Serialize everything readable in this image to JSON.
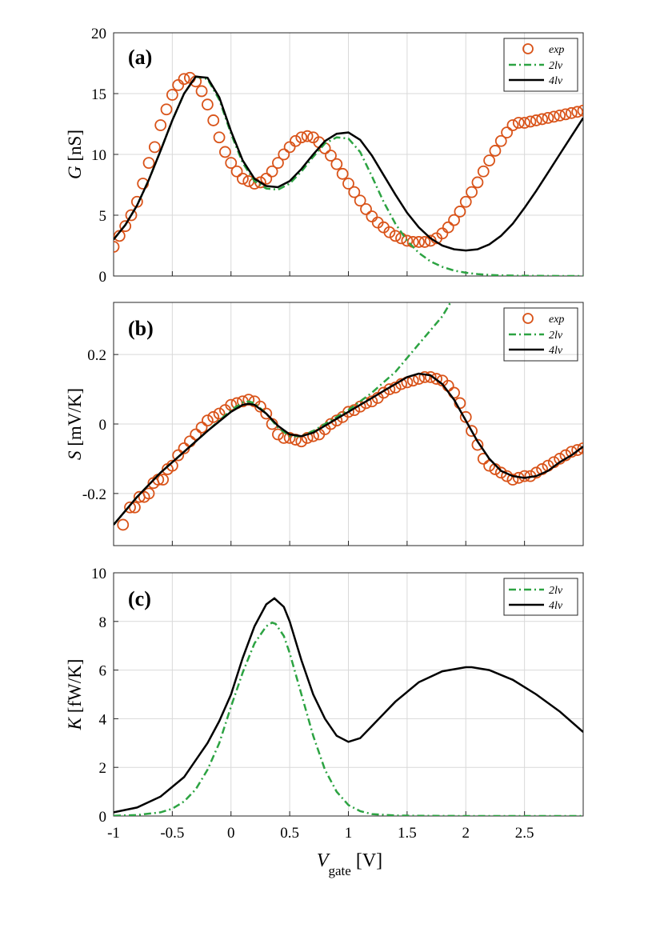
{
  "chart_data": [
    {
      "type": "line",
      "panel_label": "(a)",
      "ylabel_var": "G",
      "ylabel_unit": " [nS]",
      "xlim": [
        -1,
        3
      ],
      "ylim": [
        0,
        20
      ],
      "yticks": [
        0,
        5,
        10,
        15,
        20
      ],
      "ytick_labels": [
        "0",
        "5",
        "10",
        "15",
        "20"
      ],
      "grid": true,
      "legend_position": "top-right",
      "series": [
        {
          "name": "exp",
          "style": "markers",
          "color": "#d95319",
          "x": [
            -1,
            -0.95,
            -0.9,
            -0.85,
            -0.8,
            -0.75,
            -0.7,
            -0.65,
            -0.6,
            -0.55,
            -0.5,
            -0.45,
            -0.4,
            -0.35,
            -0.3,
            -0.25,
            -0.2,
            -0.15,
            -0.1,
            -0.05,
            0,
            0.05,
            0.1,
            0.15,
            0.2,
            0.25,
            0.3,
            0.35,
            0.4,
            0.45,
            0.5,
            0.55,
            0.6,
            0.65,
            0.7,
            0.75,
            0.8,
            0.85,
            0.9,
            0.95,
            1,
            1.05,
            1.1,
            1.15,
            1.2,
            1.25,
            1.3,
            1.35,
            1.4,
            1.45,
            1.5,
            1.55,
            1.6,
            1.65,
            1.7,
            1.75,
            1.8,
            1.85,
            1.9,
            1.95,
            2,
            2.05,
            2.1,
            2.15,
            2.2,
            2.25,
            2.3,
            2.35,
            2.4,
            2.45,
            2.5,
            2.55,
            2.6,
            2.65,
            2.7,
            2.75,
            2.8,
            2.85,
            2.9,
            2.95,
            3
          ],
          "y": [
            2.4,
            3.3,
            4.1,
            5.0,
            6.1,
            7.6,
            9.3,
            10.6,
            12.4,
            13.7,
            14.9,
            15.7,
            16.2,
            16.3,
            16.0,
            15.2,
            14.1,
            12.8,
            11.4,
            10.2,
            9.3,
            8.6,
            8.0,
            7.8,
            7.6,
            7.7,
            8.0,
            8.6,
            9.3,
            10.0,
            10.6,
            11.1,
            11.4,
            11.5,
            11.4,
            11.0,
            10.5,
            9.9,
            9.2,
            8.4,
            7.6,
            6.9,
            6.2,
            5.5,
            4.9,
            4.4,
            4.0,
            3.6,
            3.3,
            3.1,
            2.9,
            2.8,
            2.8,
            2.8,
            2.9,
            3.1,
            3.5,
            4.0,
            4.6,
            5.3,
            6.1,
            6.9,
            7.7,
            8.6,
            9.5,
            10.3,
            11.1,
            11.8,
            12.4,
            12.6,
            12.6,
            12.7,
            12.8,
            12.9,
            13.0,
            13.1,
            13.2,
            13.3,
            13.4,
            13.5,
            13.6
          ]
        },
        {
          "name": "2lv",
          "style": "dashdot",
          "color": "#2ca342",
          "x": [
            -1,
            -0.9,
            -0.8,
            -0.7,
            -0.6,
            -0.5,
            -0.4,
            -0.3,
            -0.2,
            -0.1,
            0,
            0.1,
            0.2,
            0.3,
            0.4,
            0.5,
            0.6,
            0.7,
            0.8,
            0.9,
            1,
            1.1,
            1.2,
            1.3,
            1.4,
            1.5,
            1.6,
            1.7,
            1.8,
            1.9,
            2,
            2.1,
            2.2,
            2.3,
            2.4,
            2.5,
            2.6,
            2.7,
            2.8,
            2.9,
            3
          ],
          "y": [
            3.0,
            4.2,
            5.8,
            7.9,
            10.3,
            12.8,
            15.0,
            16.4,
            16.2,
            14.5,
            11.7,
            9.3,
            7.8,
            7.2,
            7.1,
            7.6,
            8.6,
            9.8,
            10.9,
            11.4,
            11.3,
            10.2,
            8.2,
            6.1,
            4.3,
            2.9,
            1.9,
            1.2,
            0.75,
            0.45,
            0.27,
            0.16,
            0.09,
            0.05,
            0.03,
            0.015,
            0.01,
            0.005,
            0.002,
            0.001,
            0.0
          ]
        },
        {
          "name": "4lv",
          "style": "solid",
          "color": "#000000",
          "x": [
            -1,
            -0.9,
            -0.8,
            -0.7,
            -0.6,
            -0.5,
            -0.4,
            -0.3,
            -0.2,
            -0.1,
            0,
            0.1,
            0.2,
            0.3,
            0.4,
            0.5,
            0.6,
            0.7,
            0.8,
            0.9,
            1,
            1.1,
            1.2,
            1.3,
            1.4,
            1.5,
            1.6,
            1.7,
            1.8,
            1.9,
            2,
            2.1,
            2.2,
            2.3,
            2.4,
            2.5,
            2.6,
            2.7,
            2.8,
            2.9,
            3
          ],
          "y": [
            3.0,
            4.2,
            5.8,
            7.9,
            10.3,
            12.8,
            15.0,
            16.4,
            16.3,
            14.7,
            11.9,
            9.5,
            8.0,
            7.4,
            7.3,
            7.8,
            8.8,
            10.0,
            11.1,
            11.7,
            11.8,
            11.2,
            9.9,
            8.3,
            6.7,
            5.2,
            4.0,
            3.1,
            2.5,
            2.2,
            2.1,
            2.2,
            2.6,
            3.3,
            4.3,
            5.6,
            7.0,
            8.5,
            10.0,
            11.5,
            13.0
          ]
        }
      ]
    },
    {
      "type": "line",
      "panel_label": "(b)",
      "ylabel_var": "S",
      "ylabel_unit": " [mV/K]",
      "xlim": [
        -1,
        3
      ],
      "ylim": [
        -0.35,
        0.35
      ],
      "yticks": [
        -0.2,
        0,
        0.2
      ],
      "ytick_labels": [
        "-0.2",
        "0",
        "0.2"
      ],
      "grid": true,
      "legend_position": "top-right",
      "series": [
        {
          "name": "exp",
          "style": "markers",
          "color": "#d95319",
          "x": [
            -0.92,
            -0.86,
            -0.82,
            -0.78,
            -0.74,
            -0.7,
            -0.66,
            -0.62,
            -0.58,
            -0.54,
            -0.5,
            -0.45,
            -0.4,
            -0.35,
            -0.3,
            -0.25,
            -0.2,
            -0.15,
            -0.1,
            -0.05,
            0,
            0.05,
            0.1,
            0.15,
            0.2,
            0.25,
            0.3,
            0.35,
            0.4,
            0.45,
            0.5,
            0.55,
            0.6,
            0.65,
            0.7,
            0.75,
            0.8,
            0.85,
            0.9,
            0.95,
            1,
            1.05,
            1.1,
            1.15,
            1.2,
            1.25,
            1.3,
            1.35,
            1.4,
            1.45,
            1.5,
            1.55,
            1.6,
            1.65,
            1.7,
            1.75,
            1.8,
            1.85,
            1.9,
            1.95,
            2,
            2.05,
            2.1,
            2.15,
            2.2,
            2.25,
            2.3,
            2.35,
            2.4,
            2.45,
            2.5,
            2.55,
            2.6,
            2.65,
            2.7,
            2.75,
            2.8,
            2.85,
            2.9,
            2.95,
            3
          ],
          "y": [
            -0.29,
            -0.24,
            -0.24,
            -0.21,
            -0.21,
            -0.2,
            -0.17,
            -0.16,
            -0.16,
            -0.13,
            -0.12,
            -0.09,
            -0.07,
            -0.05,
            -0.03,
            -0.01,
            0.01,
            0.02,
            0.03,
            0.04,
            0.055,
            0.06,
            0.065,
            0.07,
            0.065,
            0.05,
            0.03,
            0.0,
            -0.03,
            -0.04,
            -0.04,
            -0.045,
            -0.05,
            -0.04,
            -0.035,
            -0.03,
            -0.015,
            0.0,
            0.01,
            0.02,
            0.035,
            0.04,
            0.05,
            0.06,
            0.065,
            0.075,
            0.09,
            0.1,
            0.105,
            0.115,
            0.12,
            0.125,
            0.13,
            0.135,
            0.135,
            0.13,
            0.125,
            0.11,
            0.09,
            0.06,
            0.02,
            -0.02,
            -0.06,
            -0.1,
            -0.12,
            -0.13,
            -0.14,
            -0.15,
            -0.16,
            -0.155,
            -0.15,
            -0.15,
            -0.14,
            -0.13,
            -0.12,
            -0.11,
            -0.1,
            -0.09,
            -0.08,
            -0.075,
            -0.07
          ]
        },
        {
          "name": "2lv",
          "style": "dashdot",
          "color": "#2ca342",
          "x": [
            -1,
            -0.8,
            -0.6,
            -0.4,
            -0.2,
            0,
            0.1,
            0.15,
            0.2,
            0.3,
            0.4,
            0.5,
            0.6,
            0.7,
            0.8,
            0.9,
            1,
            1.2,
            1.4,
            1.6,
            1.8,
            1.87
          ],
          "y": [
            -0.29,
            -0.21,
            -0.14,
            -0.08,
            -0.02,
            0.04,
            0.062,
            0.065,
            0.06,
            0.03,
            -0.01,
            -0.035,
            -0.035,
            -0.02,
            0.0,
            0.02,
            0.04,
            0.09,
            0.15,
            0.23,
            0.31,
            0.35
          ]
        },
        {
          "name": "4lv",
          "style": "solid",
          "color": "#000000",
          "x": [
            -1,
            -0.8,
            -0.6,
            -0.4,
            -0.2,
            0,
            0.1,
            0.15,
            0.2,
            0.3,
            0.4,
            0.5,
            0.6,
            0.7,
            0.8,
            0.9,
            1,
            1.1,
            1.2,
            1.3,
            1.4,
            1.5,
            1.6,
            1.7,
            1.8,
            1.9,
            2,
            2.1,
            2.2,
            2.3,
            2.4,
            2.5,
            2.6,
            2.7,
            2.8,
            2.9,
            3
          ],
          "y": [
            -0.29,
            -0.21,
            -0.14,
            -0.08,
            -0.02,
            0.035,
            0.055,
            0.058,
            0.055,
            0.03,
            -0.005,
            -0.03,
            -0.035,
            -0.025,
            -0.005,
            0.015,
            0.035,
            0.055,
            0.075,
            0.095,
            0.115,
            0.135,
            0.145,
            0.14,
            0.115,
            0.07,
            0.01,
            -0.05,
            -0.1,
            -0.135,
            -0.15,
            -0.155,
            -0.15,
            -0.135,
            -0.11,
            -0.09,
            -0.065
          ]
        }
      ]
    },
    {
      "type": "line",
      "panel_label": "(c)",
      "ylabel_var": "K",
      "ylabel_unit": " [fW/K]",
      "xlabel_var": "V",
      "xlabel_sub": "gate",
      "xlabel_unit": " [V]",
      "xlim": [
        -1,
        3
      ],
      "ylim": [
        0,
        10
      ],
      "yticks": [
        0,
        2,
        4,
        6,
        8,
        10
      ],
      "ytick_labels": [
        "0",
        "2",
        "4",
        "6",
        "8",
        "10"
      ],
      "xticks": [
        -1,
        -0.5,
        0,
        0.5,
        1,
        1.5,
        2,
        2.5
      ],
      "xtick_labels": [
        "-1",
        "-0.5",
        "0",
        "0.5",
        "1",
        "1.5",
        "2",
        "2.5"
      ],
      "grid": true,
      "legend_position": "top-right",
      "series": [
        {
          "name": "2lv",
          "style": "dashdot",
          "color": "#2ca342",
          "x": [
            -1,
            -0.8,
            -0.6,
            -0.5,
            -0.4,
            -0.3,
            -0.2,
            -0.1,
            0,
            0.1,
            0.2,
            0.3,
            0.35,
            0.38,
            0.45,
            0.5,
            0.6,
            0.7,
            0.8,
            0.9,
            1,
            1.1,
            1.2,
            1.4,
            1.6,
            2,
            2.5,
            3
          ],
          "y": [
            0.01,
            0.04,
            0.15,
            0.3,
            0.6,
            1.1,
            1.9,
            3.0,
            4.5,
            5.9,
            7.1,
            7.8,
            7.95,
            7.9,
            7.4,
            6.7,
            5.0,
            3.3,
            1.9,
            1.0,
            0.45,
            0.2,
            0.08,
            0.02,
            0.01,
            0.0,
            0.0,
            0.0
          ]
        },
        {
          "name": "4lv",
          "style": "solid",
          "color": "#000000",
          "x": [
            -1,
            -0.8,
            -0.6,
            -0.4,
            -0.2,
            -0.1,
            0,
            0.1,
            0.2,
            0.3,
            0.37,
            0.45,
            0.5,
            0.6,
            0.7,
            0.8,
            0.9,
            1,
            1.1,
            1.2,
            1.4,
            1.6,
            1.8,
            2,
            2.05,
            2.2,
            2.4,
            2.6,
            2.8,
            3
          ],
          "y": [
            0.15,
            0.35,
            0.8,
            1.6,
            3.0,
            3.9,
            5.0,
            6.5,
            7.8,
            8.7,
            8.95,
            8.6,
            8.0,
            6.4,
            5.0,
            4.0,
            3.3,
            3.05,
            3.2,
            3.7,
            4.7,
            5.5,
            5.95,
            6.12,
            6.12,
            6.0,
            5.6,
            5.0,
            4.3,
            3.45
          ]
        }
      ]
    }
  ]
}
